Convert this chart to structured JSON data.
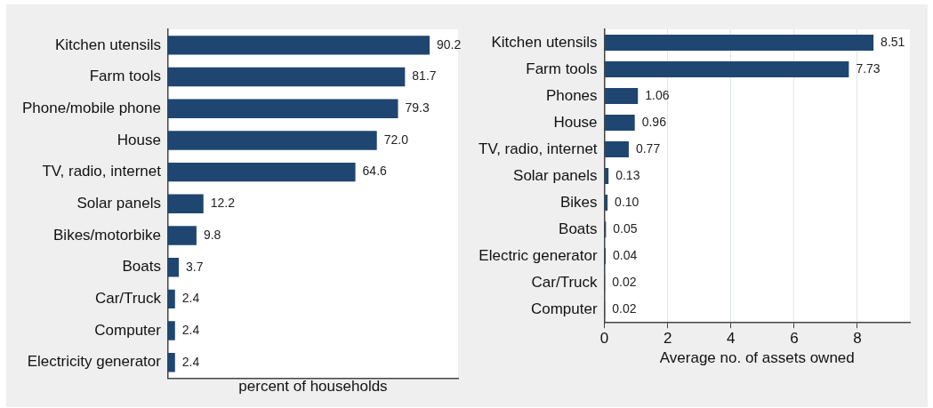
{
  "chart_data": [
    {
      "type": "bar",
      "orientation": "horizontal",
      "xlabel": "percent of households",
      "categories": [
        "Kitchen utensils",
        "Farm tools",
        "Phone/mobile phone",
        "House",
        "TV, radio, internet",
        "Solar panels",
        "Bikes/motorbike",
        "Boats",
        "Car/Truck",
        "Computer",
        "Electricity generator"
      ],
      "values": [
        90.2,
        81.7,
        79.3,
        72.0,
        64.6,
        12.2,
        9.8,
        3.7,
        2.4,
        2.4,
        2.4
      ],
      "value_labels": [
        "90.2",
        "81.7",
        "79.3",
        "72.0",
        "64.6",
        "12.2",
        "9.8",
        "3.7",
        "2.4",
        "2.4",
        "2.4"
      ],
      "color": "#1f4670",
      "tick_labels": "y",
      "grid": false,
      "legend": false
    },
    {
      "type": "bar",
      "orientation": "horizontal",
      "xlabel": "Average no. of assets owned",
      "categories": [
        "Kitchen utensils",
        "Farm tools",
        "Phones",
        "House",
        "TV, radio, internet",
        "Solar panels",
        "Bikes",
        "Boats",
        "Electric generator",
        "Car/Truck",
        "Computer"
      ],
      "values": [
        8.51,
        7.73,
        1.06,
        0.96,
        0.77,
        0.13,
        0.1,
        0.05,
        0.04,
        0.02,
        0.02
      ],
      "value_labels": [
        "8.51",
        "7.73",
        "1.06",
        "0.96",
        "0.77",
        "0.13",
        "0.10",
        "0.05",
        "0.04",
        "0.02",
        "0.02"
      ],
      "color": "#1f4670",
      "xlim": [
        0,
        9.66
      ],
      "xticks": [
        0,
        2,
        4,
        6,
        8
      ],
      "grid": "x",
      "legend": false
    }
  ]
}
